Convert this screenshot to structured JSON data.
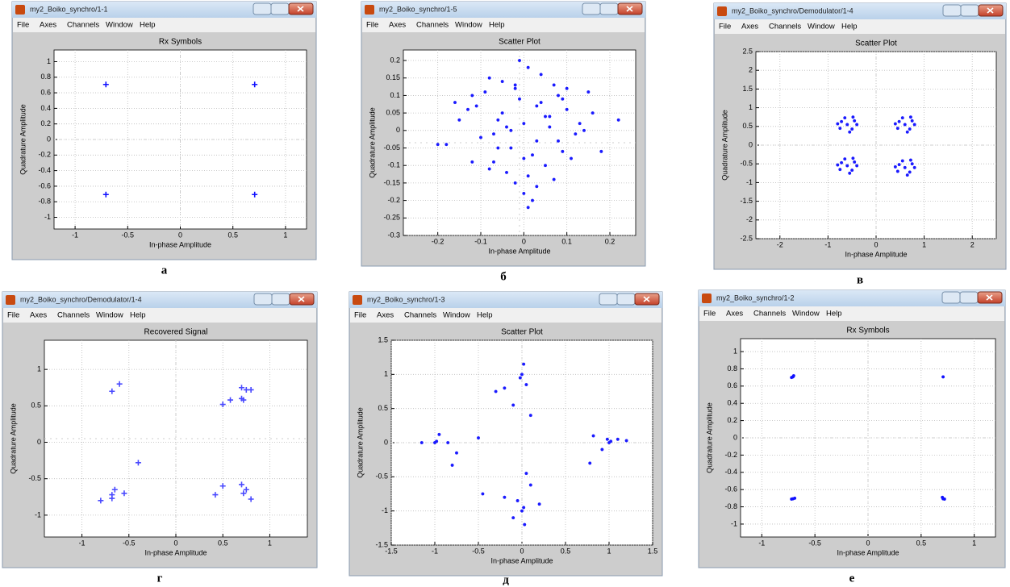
{
  "menu": [
    "File",
    "Axes",
    "Channels",
    "Window",
    "Help"
  ],
  "chart_data": [
    {
      "type": "scatter",
      "caption": "а",
      "window_title": "my2_Boiko_synchro/1-1",
      "title": "Rx Symbols",
      "xlabel": "In-phase Amplitude",
      "ylabel": "Quadrature Amplitude",
      "color": "#1010ff",
      "marker": "plus",
      "grid": true,
      "xlim": [
        -1.2,
        1.2
      ],
      "ylim": [
        -1.15,
        1.15
      ],
      "xticks": [
        -1,
        -0.5,
        0,
        0.5,
        1
      ],
      "yticks": [
        -1,
        -0.8,
        -0.6,
        -0.4,
        -0.2,
        0,
        0.2,
        0.4,
        0.6,
        0.8,
        1
      ],
      "x": [
        -0.707,
        0.707,
        -0.707,
        0.707
      ],
      "values": [
        0.707,
        0.707,
        -0.707,
        -0.707
      ]
    },
    {
      "type": "scatter",
      "caption": "б",
      "window_title": "my2_Boiko_synchro/1-5",
      "title": "Scatter Plot",
      "xlabel": "In-phase Amplitude",
      "ylabel": "Quadrature Amplitude",
      "color": "#1a1aff",
      "marker": "dot",
      "grid": true,
      "xlim": [
        -0.28,
        0.26
      ],
      "ylim": [
        -0.3,
        0.23
      ],
      "xticks": [
        -0.2,
        -0.1,
        0,
        0.1,
        0.2
      ],
      "yticks": [
        -0.3,
        -0.25,
        -0.2,
        -0.15,
        -0.1,
        -0.05,
        0,
        0.05,
        0.1,
        0.15,
        0.2
      ],
      "x": [
        -0.12,
        -0.08,
        -0.05,
        -0.02,
        0.01,
        0.04,
        0.07,
        0.1,
        0.13,
        -0.15,
        -0.1,
        -0.06,
        -0.03,
        0.0,
        0.03,
        0.06,
        0.09,
        0.12,
        0.16,
        -0.18,
        -0.11,
        -0.07,
        -0.04,
        -0.01,
        0.02,
        0.05,
        0.08,
        0.11,
        0.14,
        -0.09,
        -0.05,
        -0.02,
        0.01,
        0.04,
        0.07,
        -0.13,
        -0.06,
        0.0,
        0.06,
        0.1,
        -0.03,
        0.03,
        -0.08,
        0.08,
        -0.01,
        0.02,
        -0.2,
        0.22,
        0.18,
        -0.16,
        0.05,
        -0.04,
        0.0,
        0.09,
        -0.07,
        0.15,
        -0.12,
        0.03,
        -0.02,
        0.01
      ],
      "values": [
        0.1,
        0.15,
        0.05,
        0.12,
        0.18,
        0.08,
        0.13,
        0.06,
        0.02,
        0.03,
        -0.02,
        -0.05,
        0.0,
        0.02,
        -0.03,
        0.04,
        -0.06,
        -0.01,
        0.05,
        -0.04,
        0.07,
        -0.09,
        -0.12,
        0.09,
        -0.07,
        -0.1,
        0.1,
        -0.08,
        0.0,
        0.11,
        0.14,
        -0.15,
        -0.13,
        0.16,
        -0.14,
        0.06,
        0.03,
        -0.18,
        0.01,
        0.12,
        -0.05,
        0.07,
        -0.11,
        -0.03,
        0.2,
        -0.2,
        -0.04,
        0.03,
        -0.06,
        0.08,
        0.04,
        0.01,
        -0.08,
        0.09,
        -0.01,
        0.11,
        -0.09,
        -0.16,
        0.13,
        -0.22
      ]
    },
    {
      "type": "scatter",
      "caption": "в",
      "window_title": "my2_Boiko_synchro/Demodulator/1-4",
      "title": "Scatter Plot",
      "xlabel": "In-phase Amplitude",
      "ylabel": "Quadrature Amplitude",
      "color": "#1a1aff",
      "marker": "dot",
      "grid": true,
      "xlim": [
        -2.5,
        2.5
      ],
      "ylim": [
        -2.5,
        2.5
      ],
      "xticks": [
        -2,
        -1,
        0,
        1,
        2
      ],
      "yticks": [
        -2.5,
        -2,
        -1.5,
        -1,
        -0.5,
        0,
        0.5,
        1,
        1.5,
        2,
        2.5
      ],
      "x": [
        -0.6,
        -0.45,
        -0.72,
        -0.5,
        -0.75,
        -0.4,
        -0.65,
        -0.55,
        -0.8,
        -0.48,
        0.6,
        0.75,
        0.48,
        0.7,
        0.45,
        0.8,
        0.55,
        0.65,
        0.4,
        0.72,
        -0.6,
        -0.45,
        -0.72,
        -0.5,
        -0.75,
        -0.4,
        -0.65,
        -0.55,
        -0.8,
        -0.48,
        0.6,
        0.75,
        0.48,
        0.7,
        0.45,
        0.8,
        0.55,
        0.65,
        0.4,
        0.72
      ],
      "values": [
        0.55,
        0.65,
        0.63,
        0.43,
        0.45,
        0.55,
        0.73,
        0.35,
        0.57,
        0.75,
        0.55,
        0.65,
        0.63,
        0.43,
        0.45,
        0.55,
        0.73,
        0.35,
        0.57,
        0.75,
        -0.55,
        -0.45,
        -0.47,
        -0.67,
        -0.65,
        -0.55,
        -0.37,
        -0.75,
        -0.53,
        -0.35,
        -0.6,
        -0.5,
        -0.52,
        -0.72,
        -0.7,
        -0.6,
        -0.42,
        -0.8,
        -0.58,
        -0.4
      ]
    },
    {
      "type": "scatter",
      "caption": "г",
      "window_title": "my2_Boiko_synchro/Demodulator/1-4",
      "title": "Recovered Signal",
      "xlabel": "In-phase Amplitude",
      "ylabel": "Quadrature Amplitude",
      "color": "#4a4aff",
      "marker": "plus",
      "grid": true,
      "xlim": [
        -1.4,
        1.4
      ],
      "ylim": [
        -1.3,
        1.4
      ],
      "xticks": [
        -1,
        -0.5,
        0,
        0.5,
        1
      ],
      "yticks": [
        -1,
        -0.5,
        0,
        0.5,
        1
      ],
      "x": [
        -0.6,
        -0.68,
        0.7,
        0.75,
        0.8,
        0.7,
        0.58,
        0.5,
        0.72,
        -0.4,
        -0.8,
        -0.68,
        -0.65,
        -0.55,
        -0.68,
        0.5,
        0.42,
        0.7,
        0.75,
        0.72,
        0.8
      ],
      "values": [
        0.8,
        0.7,
        0.75,
        0.72,
        0.72,
        0.6,
        0.58,
        0.52,
        0.58,
        -0.28,
        -0.8,
        -0.72,
        -0.65,
        -0.7,
        -0.77,
        -0.6,
        -0.72,
        -0.58,
        -0.65,
        -0.7,
        -0.78
      ]
    },
    {
      "type": "scatter",
      "caption": "д",
      "window_title": "my2_Boiko_synchro/1-3",
      "title": "Scatter Plot",
      "xlabel": "In-phase Amplitude",
      "ylabel": "Quadrature Amplitude",
      "color": "#1a1aff",
      "marker": "dot",
      "grid": true,
      "xlim": [
        -1.5,
        1.5
      ],
      "ylim": [
        -1.5,
        1.5
      ],
      "xticks": [
        -1.5,
        -1,
        -0.5,
        0,
        0.5,
        1,
        1.5
      ],
      "yticks": [
        -1.5,
        -1,
        -0.5,
        0,
        0.5,
        1,
        1.5
      ],
      "x": [
        -1,
        -0.98,
        -1.15,
        -0.85,
        -0.75,
        -0.8,
        -0.5,
        -0.95,
        1,
        1.02,
        0.98,
        1.1,
        1.2,
        0.82,
        0.78,
        0.92,
        0,
        0.02,
        -0.02,
        0.05,
        -0.1,
        -0.3,
        -0.2,
        0.1,
        0,
        0.02,
        -0.05,
        0.1,
        0.05,
        -0.45,
        -0.2,
        0.2,
        -0.1,
        0.03
      ],
      "values": [
        0,
        0.02,
        0,
        0,
        -0.15,
        -0.33,
        0.07,
        0.12,
        0,
        0.02,
        0.05,
        0.05,
        0.03,
        0.1,
        -0.3,
        -0.1,
        1,
        1.15,
        0.95,
        0.85,
        0.55,
        0.75,
        0.8,
        0.4,
        -1,
        -0.95,
        -0.85,
        -0.62,
        -0.45,
        -0.75,
        -0.8,
        -0.9,
        -1.1,
        -1.2
      ]
    },
    {
      "type": "scatter",
      "caption": "е",
      "window_title": "my2_Boiko_synchro/1-2",
      "title": "Rx Symbols",
      "xlabel": "In-phase Amplitude",
      "ylabel": "Quadrature Amplitude",
      "color": "#1010ff",
      "marker": "dot",
      "grid": true,
      "xlim": [
        -1.2,
        1.2
      ],
      "ylim": [
        -1.15,
        1.15
      ],
      "xticks": [
        -1,
        -0.5,
        0,
        0.5,
        1
      ],
      "yticks": [
        -1,
        -0.8,
        -0.6,
        -0.4,
        -0.2,
        0,
        0.2,
        0.4,
        0.6,
        0.8,
        1
      ],
      "x": [
        -0.707,
        -0.72,
        -0.7,
        0.707,
        -0.707,
        -0.72,
        -0.69,
        0.707,
        0.72,
        0.7
      ],
      "values": [
        0.707,
        0.7,
        0.72,
        0.707,
        -0.707,
        -0.71,
        -0.7,
        -0.707,
        -0.71,
        -0.69
      ]
    }
  ]
}
